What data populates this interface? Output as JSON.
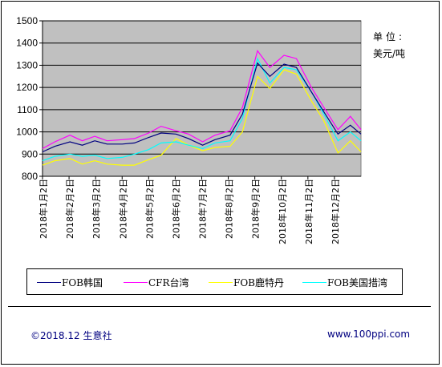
{
  "unit": {
    "label": "单位:",
    "value": "美元/吨"
  },
  "footer": {
    "copyright": "©2018.12 生意社",
    "website": "www.100ppi.com"
  },
  "colors": {
    "plot_background": "#c0c0c0",
    "grid": "#000000",
    "FOB韩国": "#000080",
    "CFR台湾": "#ff00ff",
    "FOB鹿特丹": "#ffff00",
    "FOB美国措湾": "#00ffff"
  },
  "chart_data": {
    "type": "line",
    "title": "",
    "xlabel": "",
    "ylabel": "",
    "ylim": [
      800,
      1500
    ],
    "yticks": [
      800,
      900,
      1000,
      1100,
      1200,
      1300,
      1400,
      1500
    ],
    "grid": true,
    "legend_position": "bottom",
    "x_tick_labels": [
      "2018年1月2日",
      "2018年2月2日",
      "2018年3月2日",
      "2018年4月2日",
      "2018年5月2日",
      "2018年6月2日",
      "2018年7月2日",
      "2018年8月2日",
      "2018年9月2日",
      "2018年10月2日",
      "2018年11月2日",
      "2018年12月2日"
    ],
    "x": [
      "2018-01-02",
      "2018-01-16",
      "2018-02-02",
      "2018-02-16",
      "2018-03-02",
      "2018-03-16",
      "2018-04-02",
      "2018-04-16",
      "2018-05-02",
      "2018-05-16",
      "2018-06-02",
      "2018-06-16",
      "2018-07-02",
      "2018-07-16",
      "2018-08-02",
      "2018-08-16",
      "2018-09-02",
      "2018-09-16",
      "2018-10-02",
      "2018-10-16",
      "2018-11-02",
      "2018-11-16",
      "2018-12-02",
      "2018-12-16",
      "2018-12-28"
    ],
    "series": [
      {
        "name": "FOB韩国",
        "values": [
          910,
          935,
          955,
          940,
          960,
          945,
          945,
          950,
          975,
          995,
          990,
          970,
          940,
          965,
          985,
          1080,
          1310,
          1250,
          1305,
          1290,
          1180,
          1090,
          990,
          1030,
          990
        ]
      },
      {
        "name": "CFR台湾",
        "values": [
          925,
          955,
          985,
          960,
          980,
          960,
          965,
          970,
          995,
          1025,
          1005,
          990,
          955,
          985,
          1005,
          1110,
          1365,
          1290,
          1345,
          1330,
          1200,
          1110,
          1010,
          1070,
          1010
        ]
      },
      {
        "name": "FOB鹿特丹",
        "values": [
          850,
          870,
          880,
          855,
          870,
          855,
          850,
          850,
          875,
          895,
          970,
          940,
          915,
          930,
          935,
          1000,
          1250,
          1195,
          1280,
          1260,
          1140,
          1050,
          905,
          960,
          910
        ]
      },
      {
        "name": "FOB美国措湾",
        "values": [
          870,
          890,
          900,
          890,
          895,
          880,
          885,
          900,
          920,
          950,
          955,
          940,
          925,
          950,
          960,
          1060,
          1330,
          1220,
          1290,
          1280,
          1180,
          1080,
          960,
          1000,
          960
        ]
      }
    ]
  }
}
